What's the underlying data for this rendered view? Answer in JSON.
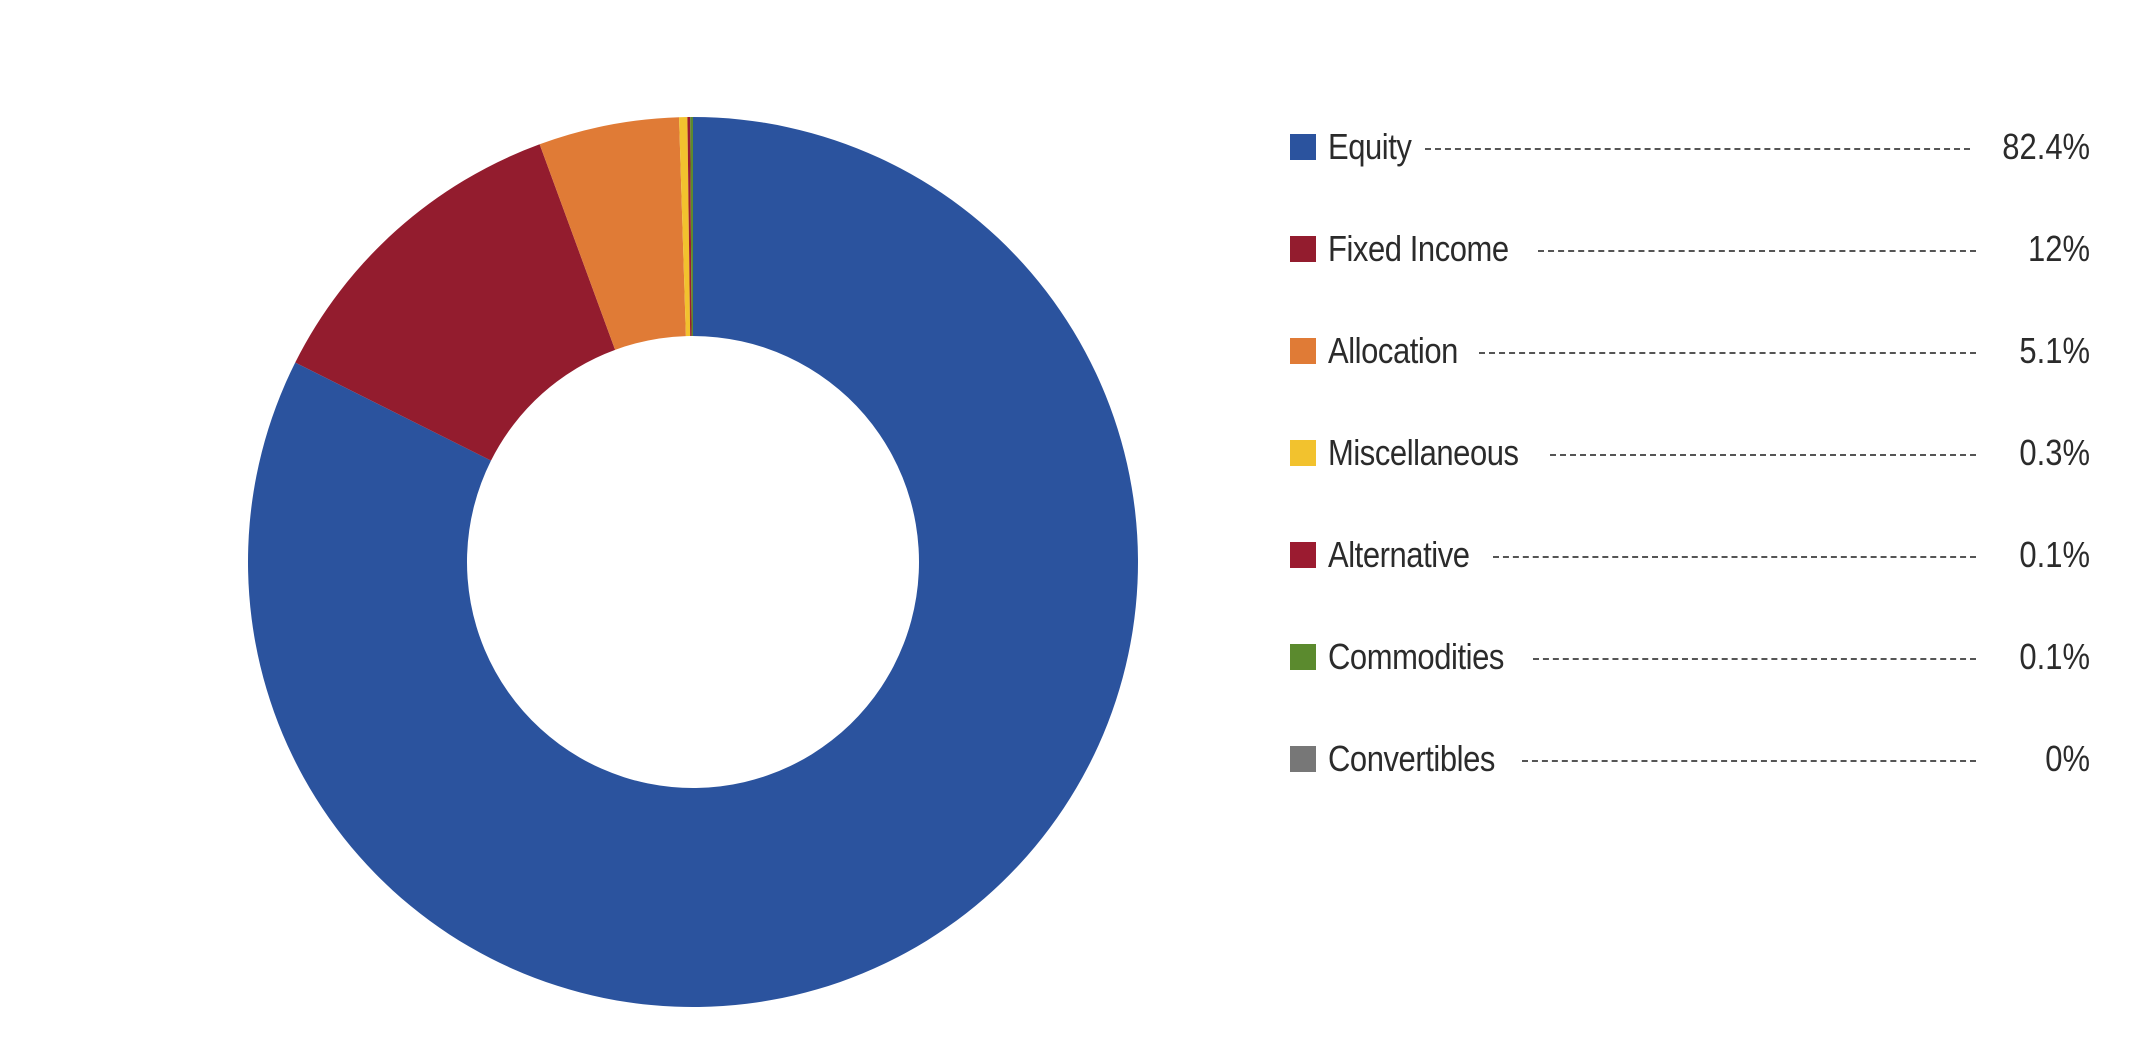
{
  "chart_data": {
    "type": "pie",
    "style": "donut",
    "legend_position": "right",
    "categories": [
      "Equity",
      "Fixed Income",
      "Allocation",
      "Miscellaneous",
      "Alternative",
      "Commodities",
      "Convertibles"
    ],
    "values": [
      82.4,
      12,
      5.1,
      0.3,
      0.1,
      0.1,
      0
    ],
    "value_labels": [
      "82.4%",
      "12%",
      "5.1%",
      "0.3%",
      "0.1%",
      "0.1%",
      "0%"
    ],
    "colors": [
      "#2b539e",
      "#931c2e",
      "#e07b36",
      "#f2c22e",
      "#9b1b30",
      "#5b8a2e",
      "#777777"
    ]
  }
}
